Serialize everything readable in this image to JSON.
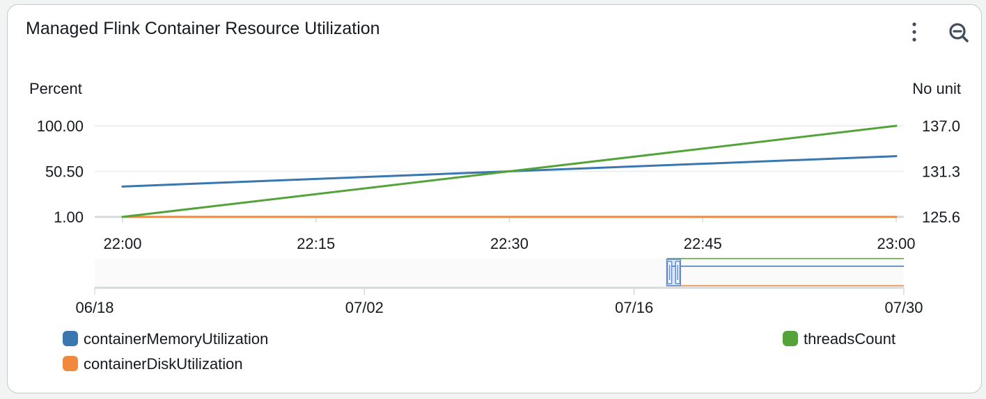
{
  "widget": {
    "title": "Managed Flink Container Resource Utilization",
    "actions": [
      "more-icon",
      "zoom-out-icon"
    ]
  },
  "chart_data": {
    "type": "line",
    "x": [
      "22:00",
      "23:00"
    ],
    "xlabels": [
      "22:00",
      "22:15",
      "22:30",
      "22:45",
      "23:00"
    ],
    "left_axis": {
      "label": "Percent",
      "ticks": [
        "100.00",
        "50.50",
        "1.00"
      ],
      "ylim": [
        1.0,
        100.0
      ]
    },
    "right_axis": {
      "label": "No unit",
      "ticks": [
        "137.0",
        "131.3",
        "125.6"
      ],
      "ylim": [
        125.6,
        137.0
      ]
    },
    "grid": true,
    "series": [
      {
        "name": "containerMemoryUtilization",
        "axis": "left",
        "color": "#3a76b0",
        "values": [
          34,
          67
        ]
      },
      {
        "name": "containerDiskUtilization",
        "axis": "left",
        "color": "#f0883e",
        "values": [
          1,
          1
        ]
      },
      {
        "name": "threadsCount",
        "axis": "right",
        "color": "#54a23a",
        "values": [
          125.6,
          137.0
        ]
      }
    ],
    "navigator": {
      "labels": [
        "06/18",
        "07/02",
        "07/16",
        "07/30"
      ],
      "selection_start": 0.707,
      "selection_end": 0.724
    },
    "legend": "bottom"
  }
}
